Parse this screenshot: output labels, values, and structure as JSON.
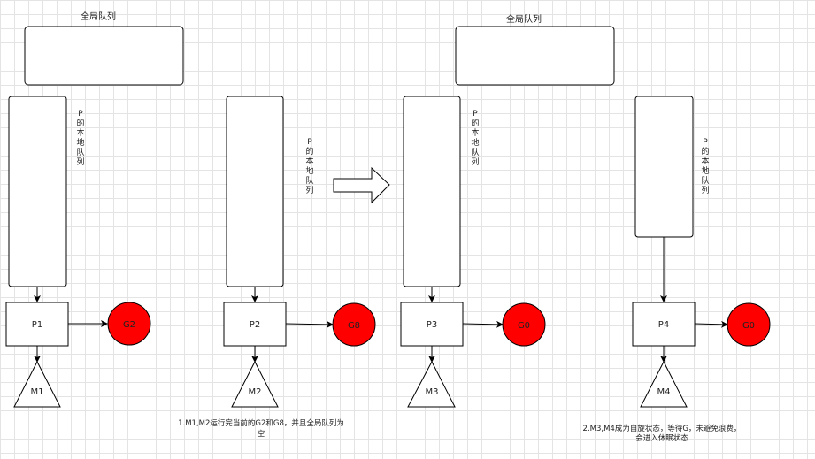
{
  "global_queue_label": "全局队列",
  "local_queue_label_chars": [
    "P",
    "的",
    "本",
    "地",
    "队",
    "列"
  ],
  "processors": [
    {
      "p": "P1",
      "m": "M1",
      "g": "G2"
    },
    {
      "p": "P2",
      "m": "M2",
      "g": "G8"
    },
    {
      "p": "P3",
      "m": "M3",
      "g": "G0"
    },
    {
      "p": "P4",
      "m": "M4",
      "g": "G0"
    }
  ],
  "notes": {
    "note1_line1": "1.M1,M2运行完当前的G2和G8，并且全局队列为",
    "note1_line2": "空",
    "note2_line1": "2.M3,M4成为自旋状态，等待G，未避免浪费，",
    "note2_line2": "会进入休眠状态"
  },
  "colors": {
    "goroutine_fill": "#ff0000",
    "stroke": "#000000"
  }
}
